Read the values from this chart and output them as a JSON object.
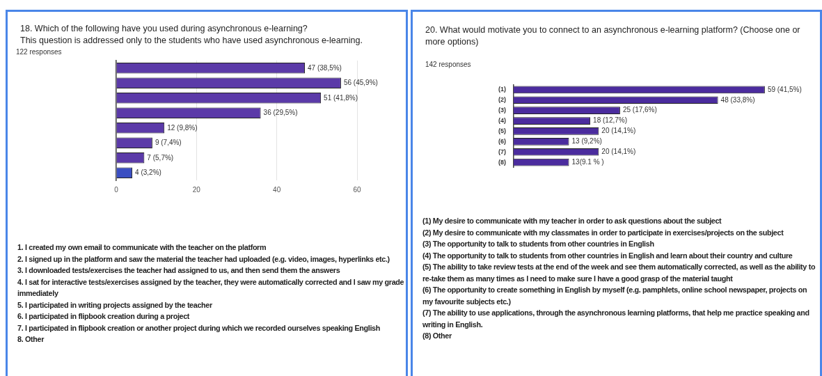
{
  "chart_data": [
    {
      "type": "bar",
      "orientation": "horizontal",
      "title": "18. Which of the following have you used during asynchronous e-learning?",
      "subtitle": "This question is addressed only to the students who have used asynchronous e-learning.",
      "categories": [
        null,
        null,
        null,
        null,
        null,
        null,
        null,
        null
      ],
      "values": [
        47,
        56,
        51,
        36,
        12,
        9,
        7,
        4
      ],
      "colors": [
        "#5b3aa8",
        "#5b3aa8",
        "#5b3aa8",
        "#5b3aa8",
        "#5b3aa8",
        "#5b3aa8",
        "#5b3aa8",
        "#3b4fc2"
      ],
      "value_labels": [
        "47 (38,5%)",
        "56 (45,9%)",
        "51 (41,8%)",
        "36 (29,5%)",
        "12 (9,8%)",
        "9 (7,4%)",
        "7 (5,7%)",
        "4 (3,2%)"
      ],
      "xlim": [
        0,
        60
      ],
      "xticks": [
        0,
        20,
        40,
        60
      ],
      "grid": "x",
      "tick_labels": "x",
      "annotations": [
        "122 responses",
        "1. I created my own email to communicate with the teacher on the platform",
        "2. I signed up in the platform and saw the material the teacher had uploaded (e.g. video, images, hyperlinks etc.)",
        "3. I downloaded tests/exercises the teacher had assigned to us, and then send them the answers",
        "4. I sat for interactive tests/exercises assigned by the teacher, they were automatically corrected and I saw my grade immediately",
        "5. I participated in writing projects assigned by the teacher",
        "6. I participated in flipbook creation during a project",
        "7. I participated in flipbook creation or another project during which we recorded ourselves speaking English",
        "8. Other"
      ]
    },
    {
      "type": "bar",
      "orientation": "horizontal",
      "title": "20. What would motivate you to connect to an asynchronous e-learning platform? (Choose one or more options)",
      "categories": [
        "(1)",
        "(2)",
        "(3)",
        "(4)",
        "(5)",
        "(6)",
        "(7)",
        "(8)"
      ],
      "values": [
        59,
        48,
        25,
        18,
        20,
        13,
        20,
        13
      ],
      "color": "#4b2c9e",
      "value_labels": [
        "59 (41,5%)",
        "48 (33,8%)",
        "25 (17,6%)",
        "18 (12,7%)",
        "20 (14,1%)",
        "13 (9,2%)",
        "20 (14,1%)",
        "13(9.1 % )"
      ],
      "tick_labels": "y",
      "annotations": [
        "142 responses",
        "(1) My desire to communicate with my teacher in order to ask questions about the subject",
        "(2) My desire to communicate with my classmates in order to participate in exercises/projects on the subject",
        "(3) The opportunity to talk to students from other countries in English",
        "(4) The opportunity to talk to students from other countries in English and learn about their country and culture",
        "(5) The ability to take review tests at the end of the week and see them automatically corrected, as well as the ability to re-take them as many times as I need to make sure I have a good grasp of the material taught",
        "(6) The opportunity to create something in English by myself (e.g. pamphlets, online school newspaper, projects on my favourite subjects etc.)",
        "(7) The ability to use applications, through the asynchronous learning platforms, that help me practice speaking and writing in English.",
        "(8) Other"
      ]
    }
  ]
}
